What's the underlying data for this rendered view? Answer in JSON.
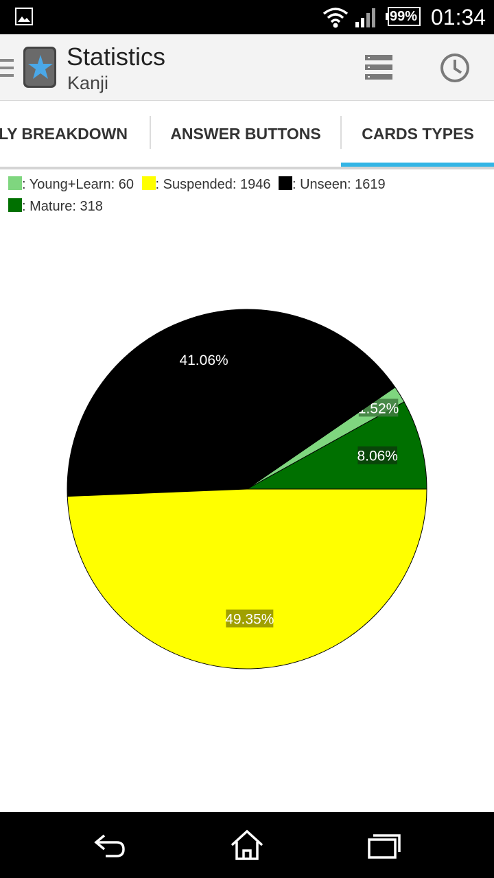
{
  "status_bar": {
    "battery": "99%",
    "time": "01:34"
  },
  "action_bar": {
    "title": "Statistics",
    "subtitle": "Kanji",
    "icons": [
      "drawer-icon",
      "app-logo",
      "list-icon",
      "history-icon"
    ]
  },
  "tabs": [
    {
      "label": "KLY BREAKDOWN",
      "selected": false
    },
    {
      "label": "ANSWER BUTTONS",
      "selected": false
    },
    {
      "label": "CARDS TYPES",
      "selected": true
    }
  ],
  "colors": {
    "accent": "#33b5e5",
    "young_learn": "#7fd67f",
    "suspended": "#ffff00",
    "unseen": "#000000",
    "mature": "#007000"
  },
  "legend": [
    {
      "label": ": Young+Learn: 60",
      "color": "#7fd67f"
    },
    {
      "label": ": Suspended: 1946",
      "color": "#ffff00"
    },
    {
      "label": ": Unseen: 1619",
      "color": "#000000"
    },
    {
      "label": ": Mature: 318",
      "color": "#007000"
    }
  ],
  "chart_data": {
    "type": "pie",
    "slices": [
      {
        "name": "Mature",
        "value": 318,
        "percent_label": "8.06%",
        "color": "#007000"
      },
      {
        "name": "Young+Learn",
        "value": 60,
        "percent_label": "1.52%",
        "color": "#7fd67f"
      },
      {
        "name": "Unseen",
        "value": 1619,
        "percent_label": "41.06%",
        "color": "#000000"
      },
      {
        "name": "Suspended",
        "value": 1946,
        "percent_label": "49.35%",
        "color": "#ffff00"
      }
    ]
  },
  "nav_bar": {
    "buttons": [
      "back-icon",
      "home-icon",
      "recents-icon"
    ]
  }
}
